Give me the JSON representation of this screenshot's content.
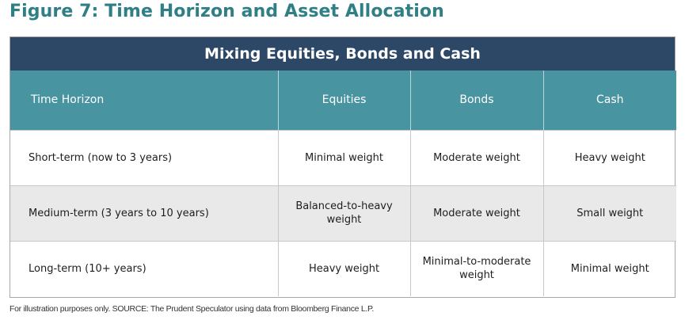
{
  "figure": {
    "title": "Figure 7: Time Horizon and Asset Allocation",
    "colors": {
      "title": "#2f7f86",
      "banner": "#2d4766",
      "header": "#4895a1",
      "stripe": "#e9e9e9"
    }
  },
  "table": {
    "banner": "Mixing Equities, Bonds and Cash",
    "headers": [
      "Time Horizon",
      "Equities",
      "Bonds",
      "Cash"
    ],
    "rows": [
      [
        "Short-term (now to 3 years)",
        "Minimal weight",
        "Moderate weight",
        "Heavy weight"
      ],
      [
        "Medium-term (3 years to 10 years)",
        "Balanced-to-heavy weight",
        "Moderate weight",
        "Small weight"
      ],
      [
        "Long-term (10+ years)",
        "Heavy weight",
        "Minimal-to-moderate weight",
        "Minimal weight"
      ]
    ]
  },
  "source": "For illustration purposes only. SOURCE: The Prudent Speculator using data from Bloomberg Finance L.P."
}
